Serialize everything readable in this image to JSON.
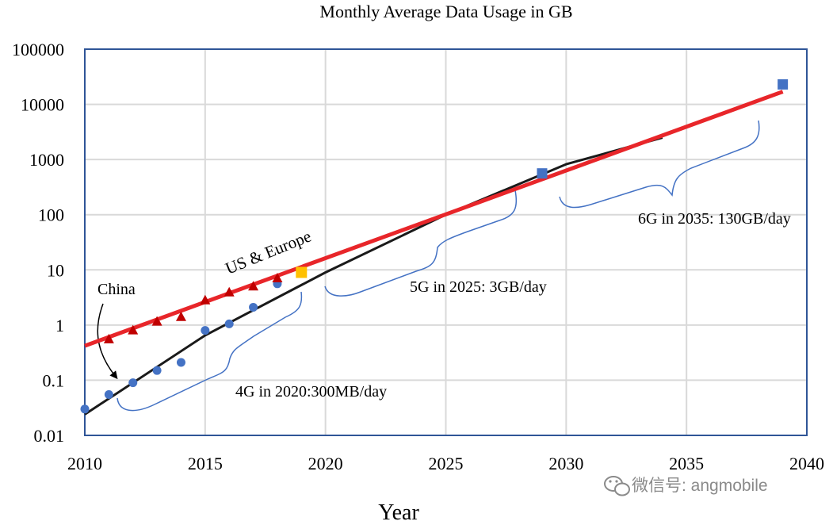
{
  "chart_data": {
    "type": "scatter",
    "title": "Monthly Average Data Usage in GB",
    "xlabel": "Year",
    "ylabel": "",
    "xlim": [
      2010,
      2040
    ],
    "ylim": [
      0.01,
      100000
    ],
    "y_scale": "log",
    "grid": true,
    "x_ticks": [
      "2010",
      "2015",
      "2020",
      "2025",
      "2030",
      "2035",
      "2040"
    ],
    "y_ticks": [
      "0.01",
      "0.1",
      "1",
      "10",
      "100",
      "1000",
      "10000",
      "100000"
    ],
    "colors": {
      "china": "#4472C4",
      "us_europe": "#C00000",
      "highlight_2019": "#FFC000",
      "forecast": "#4472C4",
      "red_trend": "#E8262A",
      "black_trend": "#1a1a1a",
      "brace": "#4472C4",
      "frame": "#2F5597",
      "grid": "#D9D9D9"
    },
    "series": [
      {
        "name": "China",
        "marker": "circle",
        "x": [
          2010,
          2011,
          2012,
          2013,
          2014,
          2015,
          2016,
          2017,
          2018
        ],
        "y": [
          0.03,
          0.055,
          0.09,
          0.15,
          0.21,
          0.8,
          1.05,
          2.1,
          5.6
        ]
      },
      {
        "name": "US & Europe",
        "marker": "triangle",
        "x": [
          2011,
          2012,
          2013,
          2014,
          2015,
          2016,
          2017,
          2018
        ],
        "y": [
          0.55,
          0.8,
          1.15,
          1.4,
          2.8,
          3.9,
          5.0,
          7.0
        ]
      },
      {
        "name": "",
        "marker": "square",
        "x": [
          2019
        ],
        "y": [
          9.0
        ]
      },
      {
        "name": "",
        "marker": "square",
        "x": [
          2029,
          2039
        ],
        "y": [
          560,
          23000
        ]
      }
    ],
    "trendlines": [
      {
        "x": [
          2010,
          2039
        ],
        "y": [
          0.42,
          17000
        ]
      },
      {
        "x": [
          2010,
          2015,
          2020,
          2025,
          2030,
          2034
        ],
        "y": [
          0.024,
          0.65,
          9,
          100,
          820,
          2500
        ]
      }
    ],
    "annotations": {
      "china_label": "China",
      "us_label": "US & Europe",
      "g4": "4G in 2020:300MB/day",
      "g5": "5G in 2025: 3GB/day",
      "g6": "6G in 2035: 130GB/day"
    }
  },
  "watermark": {
    "text": "微信号: angmobile",
    "icon": "wechat-icon"
  }
}
